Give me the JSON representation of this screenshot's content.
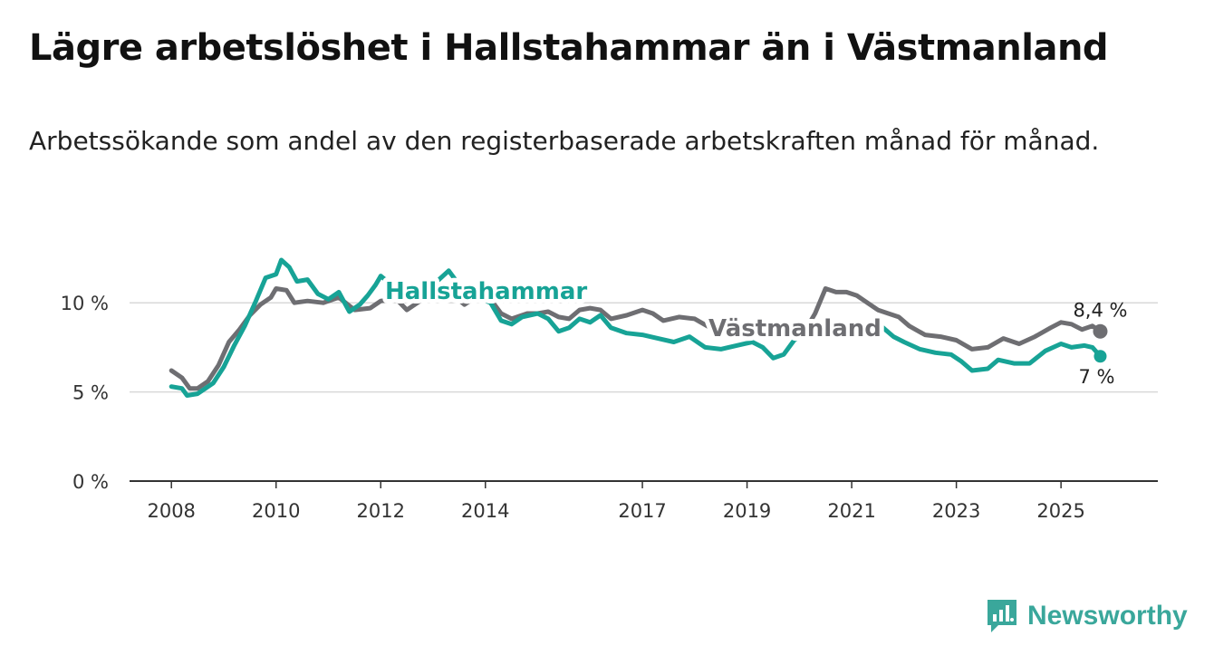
{
  "title": "Lägre arbetslöshet i Hallstahammar än i Västmanland",
  "subtitle": "Arbetssökande som andel av den registerbaserade arbetskraften månad för månad.",
  "brand": {
    "name": "Newsworthy",
    "color": "#3aa79b",
    "icon": "newsworthy-logo-icon"
  },
  "chart_data": {
    "type": "line",
    "title": "Lägre arbetslöshet i Hallstahammar än i Västmanland",
    "xlabel": "",
    "ylabel": "",
    "xlim": [
      2007.6,
      2026.6
    ],
    "ylim": [
      0,
      12.5
    ],
    "y_ticks": [
      {
        "value": 0,
        "label": "0 %"
      },
      {
        "value": 5,
        "label": "5 %"
      },
      {
        "value": 10,
        "label": "10 %"
      }
    ],
    "x_ticks": [
      {
        "value": 2008,
        "label": "2008"
      },
      {
        "value": 2010,
        "label": "2010"
      },
      {
        "value": 2012,
        "label": "2012"
      },
      {
        "value": 2014,
        "label": "2014"
      },
      {
        "value": 2017,
        "label": "2017"
      },
      {
        "value": 2019,
        "label": "2019"
      },
      {
        "value": 2021,
        "label": "2021"
      },
      {
        "value": 2023,
        "label": "2023"
      },
      {
        "value": 2025,
        "label": "2025"
      }
    ],
    "grid": true,
    "series": [
      {
        "name": "Västmanland",
        "color": "#6e6e72",
        "label": "Västmanland",
        "end_label": "8,4 %",
        "points": [
          [
            2008.0,
            6.2
          ],
          [
            2008.2,
            5.8
          ],
          [
            2008.35,
            5.2
          ],
          [
            2008.5,
            5.2
          ],
          [
            2008.7,
            5.6
          ],
          [
            2008.9,
            6.5
          ],
          [
            2009.1,
            7.8
          ],
          [
            2009.3,
            8.5
          ],
          [
            2009.5,
            9.3
          ],
          [
            2009.7,
            9.9
          ],
          [
            2009.9,
            10.3
          ],
          [
            2010.0,
            10.8
          ],
          [
            2010.2,
            10.7
          ],
          [
            2010.35,
            10.0
          ],
          [
            2010.6,
            10.1
          ],
          [
            2010.9,
            10.0
          ],
          [
            2011.2,
            10.3
          ],
          [
            2011.5,
            9.6
          ],
          [
            2011.8,
            9.7
          ],
          [
            2012.0,
            10.1
          ],
          [
            2012.3,
            10.2
          ],
          [
            2012.5,
            9.6
          ],
          [
            2012.8,
            10.2
          ],
          [
            2013.1,
            10.3
          ],
          [
            2013.4,
            10.4
          ],
          [
            2013.6,
            9.9
          ],
          [
            2013.9,
            10.5
          ],
          [
            2014.1,
            10.2
          ],
          [
            2014.3,
            9.4
          ],
          [
            2014.5,
            9.1
          ],
          [
            2014.8,
            9.4
          ],
          [
            2015.0,
            9.4
          ],
          [
            2015.2,
            9.5
          ],
          [
            2015.4,
            9.2
          ],
          [
            2015.6,
            9.1
          ],
          [
            2015.8,
            9.6
          ],
          [
            2016.0,
            9.7
          ],
          [
            2016.2,
            9.6
          ],
          [
            2016.4,
            9.1
          ],
          [
            2016.7,
            9.3
          ],
          [
            2017.0,
            9.6
          ],
          [
            2017.2,
            9.4
          ],
          [
            2017.4,
            9.0
          ],
          [
            2017.7,
            9.2
          ],
          [
            2018.0,
            9.1
          ],
          [
            2018.3,
            8.6
          ],
          [
            2018.6,
            8.4
          ],
          [
            2018.9,
            8.5
          ],
          [
            2019.2,
            8.6
          ],
          [
            2019.5,
            8.5
          ],
          [
            2019.8,
            8.3
          ],
          [
            2020.1,
            8.4
          ],
          [
            2020.3,
            9.4
          ],
          [
            2020.5,
            10.8
          ],
          [
            2020.7,
            10.6
          ],
          [
            2020.9,
            10.6
          ],
          [
            2021.1,
            10.4
          ],
          [
            2021.3,
            10.0
          ],
          [
            2021.5,
            9.6
          ],
          [
            2021.7,
            9.4
          ],
          [
            2021.9,
            9.2
          ],
          [
            2022.1,
            8.7
          ],
          [
            2022.4,
            8.2
          ],
          [
            2022.7,
            8.1
          ],
          [
            2023.0,
            7.9
          ],
          [
            2023.3,
            7.4
          ],
          [
            2023.6,
            7.5
          ],
          [
            2023.9,
            8.0
          ],
          [
            2024.2,
            7.7
          ],
          [
            2024.5,
            8.1
          ],
          [
            2024.8,
            8.6
          ],
          [
            2025.0,
            8.9
          ],
          [
            2025.2,
            8.8
          ],
          [
            2025.4,
            8.5
          ],
          [
            2025.6,
            8.7
          ],
          [
            2025.75,
            8.4
          ]
        ]
      },
      {
        "name": "Hallstahammar",
        "color": "#17a396",
        "label": "Hallstahammar",
        "end_label": "7 %",
        "points": [
          [
            2008.0,
            5.3
          ],
          [
            2008.2,
            5.2
          ],
          [
            2008.3,
            4.8
          ],
          [
            2008.5,
            4.9
          ],
          [
            2008.65,
            5.2
          ],
          [
            2008.8,
            5.5
          ],
          [
            2009.0,
            6.4
          ],
          [
            2009.2,
            7.6
          ],
          [
            2009.4,
            8.7
          ],
          [
            2009.6,
            10.0
          ],
          [
            2009.8,
            11.4
          ],
          [
            2010.0,
            11.6
          ],
          [
            2010.1,
            12.4
          ],
          [
            2010.25,
            12.0
          ],
          [
            2010.4,
            11.2
          ],
          [
            2010.6,
            11.3
          ],
          [
            2010.8,
            10.5
          ],
          [
            2011.0,
            10.2
          ],
          [
            2011.2,
            10.6
          ],
          [
            2011.4,
            9.5
          ],
          [
            2011.6,
            9.9
          ],
          [
            2011.75,
            10.4
          ],
          [
            2011.9,
            11.0
          ],
          [
            2012.0,
            11.5
          ]
        ],
        "hidden_middle": [
          [
            2012.0,
            11.5
          ],
          [
            2014.1,
            10.0
          ]
        ],
        "points_b": [
          [
            2014.1,
            10.0
          ],
          [
            2014.3,
            9.0
          ],
          [
            2014.5,
            8.8
          ],
          [
            2014.7,
            9.2
          ],
          [
            2015.0,
            9.4
          ],
          [
            2015.2,
            9.1
          ],
          [
            2015.4,
            8.4
          ],
          [
            2015.6,
            8.6
          ],
          [
            2015.8,
            9.1
          ],
          [
            2016.0,
            8.9
          ],
          [
            2016.2,
            9.3
          ],
          [
            2016.4,
            8.6
          ],
          [
            2016.7,
            8.3
          ],
          [
            2017.0,
            8.2
          ],
          [
            2017.3,
            8.0
          ],
          [
            2017.6,
            7.8
          ],
          [
            2017.9,
            8.1
          ],
          [
            2018.2,
            7.5
          ],
          [
            2018.5,
            7.4
          ],
          [
            2018.8,
            7.6
          ],
          [
            2019.1,
            7.8
          ],
          [
            2019.3,
            7.5
          ],
          [
            2019.5,
            6.9
          ],
          [
            2019.7,
            7.1
          ],
          [
            2019.9,
            7.9
          ],
          [
            2020.1,
            8.3
          ]
        ],
        "points_c": [
          [
            2021.6,
            8.6
          ],
          [
            2021.8,
            8.1
          ],
          [
            2022.0,
            7.8
          ],
          [
            2022.3,
            7.4
          ],
          [
            2022.6,
            7.2
          ],
          [
            2022.9,
            7.1
          ],
          [
            2023.1,
            6.7
          ],
          [
            2023.3,
            6.2
          ],
          [
            2023.6,
            6.3
          ],
          [
            2023.8,
            6.8
          ],
          [
            2024.1,
            6.6
          ],
          [
            2024.4,
            6.6
          ],
          [
            2024.7,
            7.3
          ],
          [
            2025.0,
            7.7
          ],
          [
            2025.2,
            7.5
          ],
          [
            2025.45,
            7.6
          ],
          [
            2025.6,
            7.5
          ],
          [
            2025.75,
            7.0
          ]
        ]
      }
    ]
  }
}
